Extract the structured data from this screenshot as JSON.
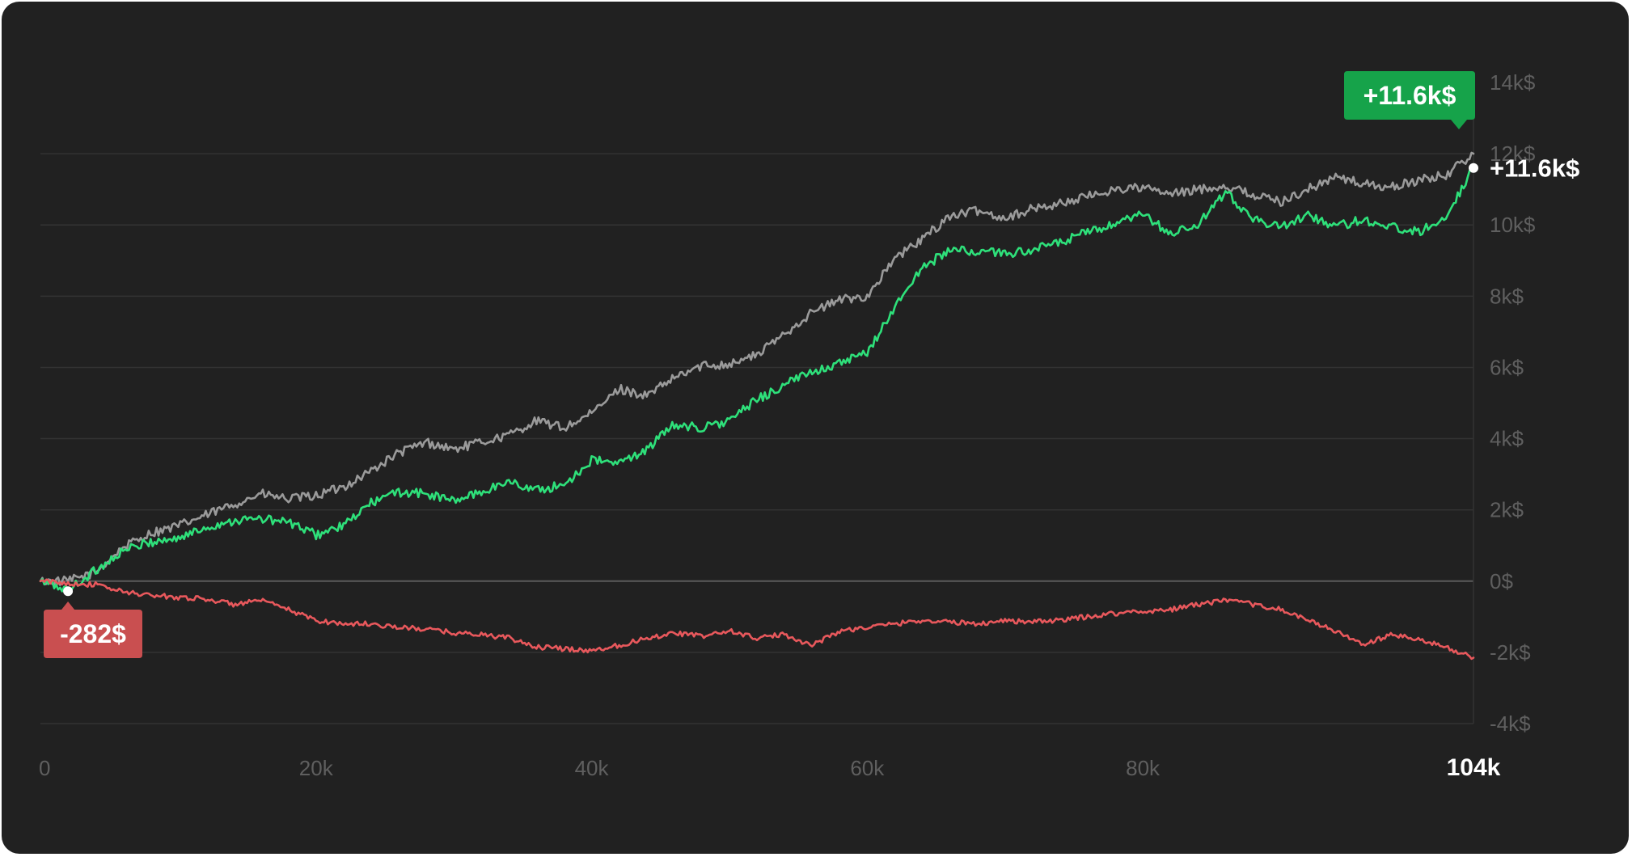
{
  "chart_data": {
    "type": "line",
    "xlim": [
      0,
      104000
    ],
    "ylim": [
      -4000,
      14000
    ],
    "x_ticks": [
      {
        "value": 0,
        "label": "0"
      },
      {
        "value": 20000,
        "label": "20k"
      },
      {
        "value": 40000,
        "label": "40k"
      },
      {
        "value": 60000,
        "label": "60k"
      },
      {
        "value": 80000,
        "label": "80k"
      },
      {
        "value": 104000,
        "label": "104k",
        "highlight": true
      }
    ],
    "y_ticks": [
      {
        "value": 14000,
        "label": "14k$"
      },
      {
        "value": 12000,
        "label": "12k$"
      },
      {
        "value": 10000,
        "label": "10k$"
      },
      {
        "value": 8000,
        "label": "8k$"
      },
      {
        "value": 6000,
        "label": "6k$"
      },
      {
        "value": 4000,
        "label": "4k$"
      },
      {
        "value": 2000,
        "label": "2k$"
      },
      {
        "value": 0,
        "label": "0$"
      },
      {
        "value": -2000,
        "label": "-2k$"
      },
      {
        "value": -4000,
        "label": "-4k$"
      }
    ],
    "grid": true,
    "series": [
      {
        "color": "#9a9a9a",
        "x": [
          0,
          2000,
          4000,
          6000,
          8000,
          10000,
          12000,
          14000,
          16000,
          18000,
          20000,
          22000,
          24000,
          26000,
          28000,
          30000,
          32000,
          34000,
          36000,
          38000,
          40000,
          42000,
          44000,
          46000,
          48000,
          50000,
          52000,
          54000,
          56000,
          58000,
          60000,
          62000,
          64000,
          66000,
          68000,
          70000,
          72000,
          74000,
          76000,
          78000,
          80000,
          82000,
          84000,
          86000,
          88000,
          90000,
          92000,
          94000,
          96000,
          98000,
          100000,
          102000,
          104000
        ],
        "values": [
          0,
          0,
          250,
          950,
          1350,
          1550,
          1850,
          2150,
          2450,
          2300,
          2400,
          2650,
          3100,
          3600,
          3900,
          3700,
          3900,
          4100,
          4500,
          4300,
          4700,
          5400,
          5200,
          5700,
          6050,
          6100,
          6350,
          6950,
          7550,
          7900,
          8000,
          9050,
          9600,
          10250,
          10400,
          10200,
          10450,
          10600,
          10800,
          11000,
          11050,
          10850,
          11000,
          11100,
          10850,
          10650,
          11000,
          11350,
          11150,
          11050,
          11250,
          11400,
          12000
        ]
      },
      {
        "color": "#2ee07a",
        "x": [
          0,
          2000,
          4000,
          6000,
          8000,
          10000,
          12000,
          14000,
          16000,
          18000,
          20000,
          22000,
          24000,
          26000,
          28000,
          30000,
          32000,
          34000,
          36000,
          38000,
          40000,
          42000,
          44000,
          46000,
          48000,
          50000,
          52000,
          54000,
          56000,
          58000,
          60000,
          62000,
          64000,
          66000,
          68000,
          70000,
          72000,
          74000,
          76000,
          78000,
          80000,
          82000,
          84000,
          86000,
          88000,
          90000,
          92000,
          94000,
          96000,
          98000,
          100000,
          102000,
          104000
        ],
        "values": [
          0,
          -250,
          300,
          850,
          1100,
          1200,
          1500,
          1700,
          1750,
          1650,
          1300,
          1550,
          2200,
          2500,
          2450,
          2250,
          2500,
          2800,
          2550,
          2700,
          3400,
          3300,
          3700,
          4400,
          4300,
          4500,
          5100,
          5500,
          5900,
          6100,
          6400,
          7700,
          8800,
          9300,
          9250,
          9200,
          9300,
          9500,
          9800,
          10000,
          10300,
          9750,
          10000,
          10900,
          10200,
          9900,
          10300,
          9950,
          10150,
          9950,
          9800,
          10250,
          11600
        ]
      },
      {
        "color": "#e8585c",
        "x": [
          0,
          2000,
          4000,
          6000,
          8000,
          10000,
          12000,
          14000,
          16000,
          18000,
          20000,
          22000,
          24000,
          26000,
          28000,
          30000,
          32000,
          34000,
          36000,
          38000,
          40000,
          42000,
          44000,
          46000,
          48000,
          50000,
          52000,
          54000,
          56000,
          58000,
          60000,
          62000,
          64000,
          66000,
          68000,
          70000,
          72000,
          74000,
          76000,
          78000,
          80000,
          82000,
          84000,
          86000,
          88000,
          90000,
          92000,
          94000,
          96000,
          98000,
          100000,
          102000,
          104000
        ],
        "values": [
          0,
          -60,
          -100,
          -300,
          -400,
          -450,
          -500,
          -650,
          -550,
          -800,
          -1100,
          -1200,
          -1200,
          -1300,
          -1350,
          -1450,
          -1500,
          -1600,
          -1850,
          -1900,
          -1950,
          -1800,
          -1600,
          -1450,
          -1550,
          -1400,
          -1600,
          -1500,
          -1800,
          -1400,
          -1300,
          -1200,
          -1100,
          -1150,
          -1200,
          -1100,
          -1150,
          -1100,
          -1000,
          -900,
          -850,
          -800,
          -650,
          -550,
          -650,
          -800,
          -1100,
          -1400,
          -1800,
          -1500,
          -1650,
          -1850,
          -2150
        ]
      }
    ],
    "markers": {
      "start_value": -282,
      "start_x": 2000,
      "start_label": "-282$",
      "end_label": "+11.6k$",
      "end_badge_label": "+11.6k$"
    },
    "colors": {
      "background": "#212121",
      "grid": "#333333",
      "zero_line": "#5a5a5a",
      "tick": "#5f5f5f",
      "badge_red": "#c94f50",
      "badge_green": "#16a34a"
    }
  }
}
